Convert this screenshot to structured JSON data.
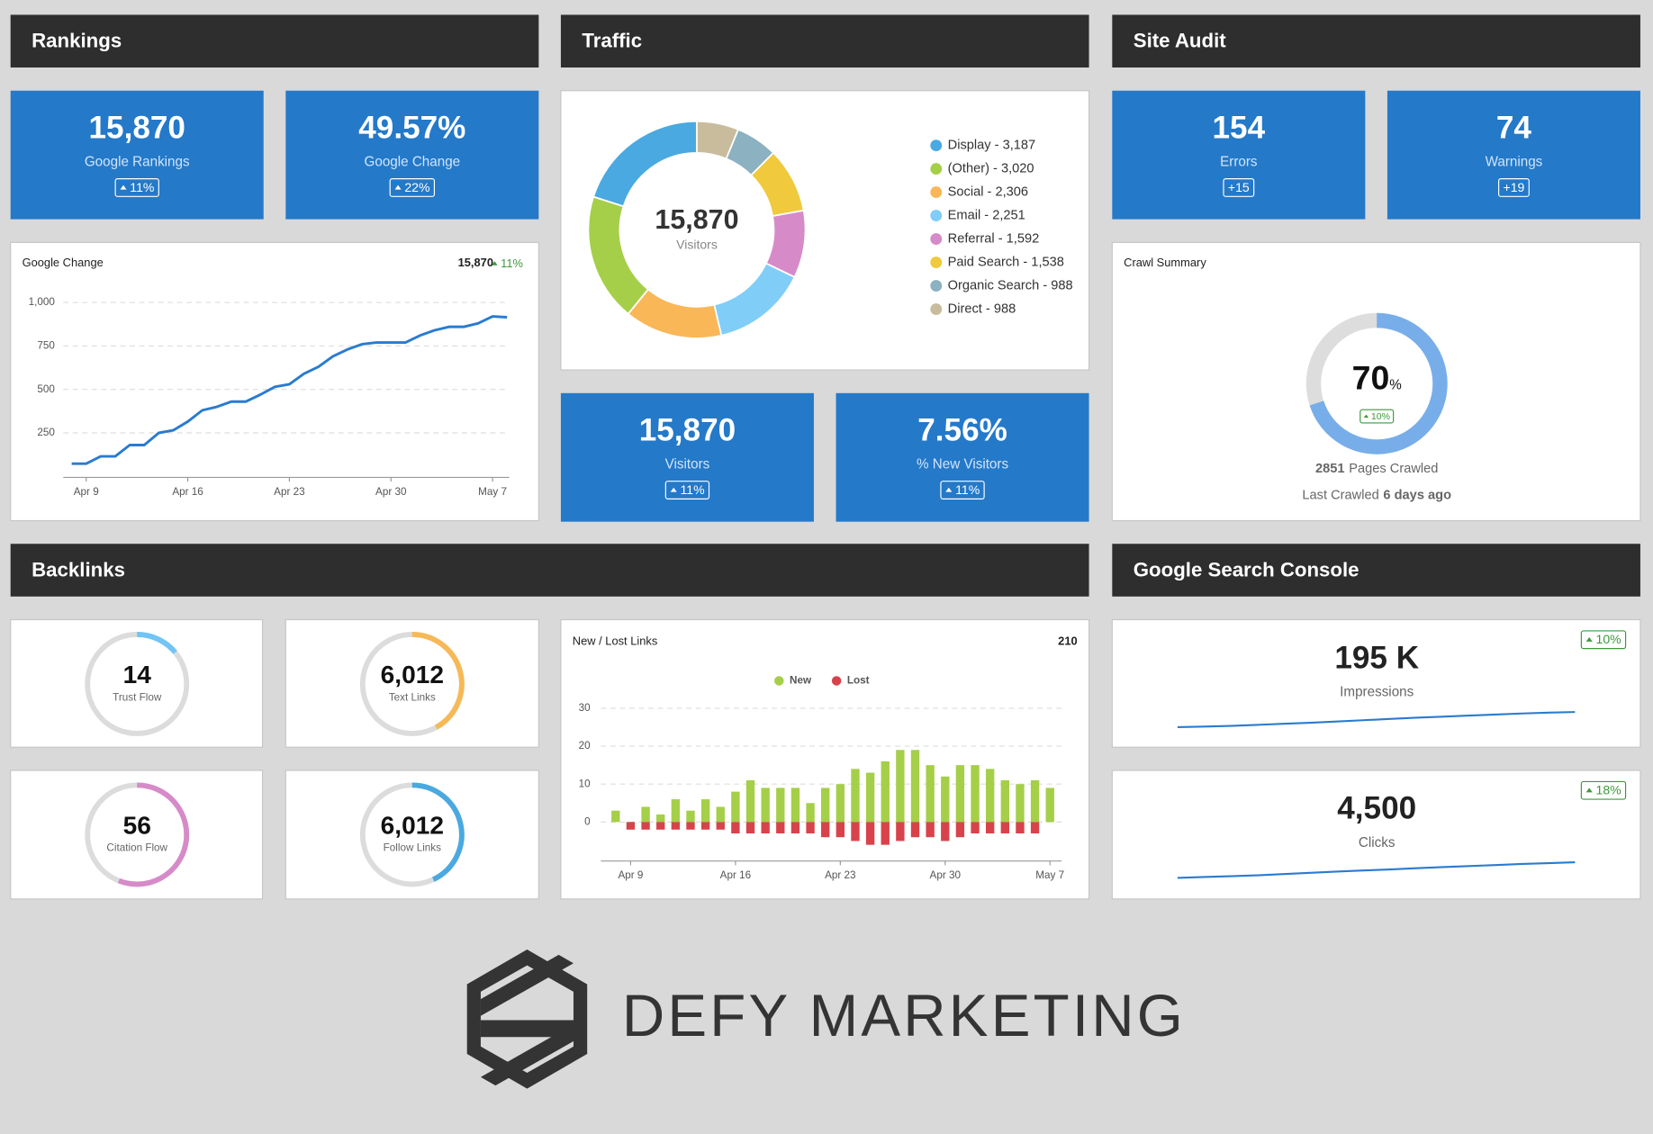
{
  "headers": [
    "Rankings",
    "Traffic",
    "Site Audit",
    "Backlinks",
    "Google Search Console"
  ],
  "tiles": [
    {
      "value": "15,870",
      "label": "Google Rankings",
      "change": "11%",
      "arrow": true
    },
    {
      "value": "49.57%",
      "label": "Google Change",
      "change": "22%",
      "arrow": true
    },
    {
      "value": "154",
      "label": "Errors",
      "change": "+15",
      "arrow": false
    },
    {
      "value": "74",
      "label": "Warnings",
      "change": "+19",
      "arrow": false
    },
    {
      "value": "15,870",
      "label": "Visitors",
      "change": "11%",
      "arrow": true
    },
    {
      "value": "7.56%",
      "label": "% New Visitors",
      "change": "11%",
      "arrow": true
    }
  ],
  "rankings_chart": {
    "type": "line",
    "title": "Google Change",
    "total": "15,870",
    "change": "11%",
    "color": "#2a7bcf",
    "categories": [
      null,
      "Apr 9",
      null,
      null,
      null,
      null,
      null,
      null,
      "Apr 16",
      null,
      null,
      null,
      null,
      null,
      null,
      "Apr 23",
      null,
      null,
      null,
      null,
      null,
      null,
      "Apr 30",
      null,
      null,
      null,
      null,
      null,
      null,
      "May 7",
      null
    ],
    "values": [
      73,
      73,
      115,
      115,
      180,
      180,
      250,
      265,
      315,
      380,
      400,
      430,
      430,
      470,
      515,
      530,
      590,
      630,
      690,
      730,
      760,
      770,
      770,
      770,
      810,
      840,
      860,
      860,
      880,
      920,
      915
    ],
    "ylim": [
      0,
      1000
    ],
    "yticks": [
      250,
      500,
      750,
      {
        "value": 1000,
        "label": "1,000"
      }
    ],
    "grid": true
  },
  "traffic_chart": {
    "type": "pie",
    "total": "15,870",
    "total_label": "Visitors",
    "labels": [
      "Display - 3,187",
      "(Other) - 3,020",
      "Social - 2,306",
      "Email - 2,251",
      "Referral - 1,592",
      "Paid Search - 1,538",
      "Organic Search - 988",
      "Direct - 988"
    ],
    "values": [
      3187,
      3020,
      2306,
      2251,
      1592,
      1538,
      988,
      988
    ],
    "colors": [
      "#4aa9e0",
      "#a5cf48",
      "#f9b757",
      "#80cdf8",
      "#d68bc8",
      "#f0c93d",
      "#8cb1c1",
      "#c8bc9d"
    ]
  },
  "crawl": {
    "title": "Crawl Summary",
    "value": 70,
    "unit": "%",
    "change": "10%",
    "color": "#77aeea",
    "pages": "2851",
    "pages_label": "Pages Crawled",
    "last_label": "Last Crawled",
    "last_value": "6 days ago"
  },
  "backlink_rings": [
    {
      "value": 14,
      "label": "Trust Flow",
      "percent": 14,
      "color": "#71c4f5"
    },
    {
      "value": "6,012",
      "label": "Text Links",
      "percent": 42,
      "color": "#f6b957"
    },
    {
      "value": 56,
      "label": "Citation Flow",
      "percent": 56,
      "color": "#d68bc8"
    },
    {
      "value": "6,012",
      "label": "Follow Links",
      "percent": 43,
      "color": "#4aa9e0"
    }
  ],
  "links_chart": {
    "type": "bar",
    "title": "New / Lost Links",
    "total": "210",
    "categories": [
      null,
      "Apr 9",
      null,
      null,
      null,
      null,
      null,
      null,
      "Apr 16",
      null,
      null,
      null,
      null,
      null,
      null,
      "Apr 23",
      null,
      null,
      null,
      null,
      null,
      null,
      "Apr 30",
      null,
      null,
      null,
      null,
      null,
      null,
      "May 7"
    ],
    "series": [
      {
        "name": "New",
        "color": "#a5cf48",
        "values": [
          3,
          0,
          4,
          2,
          6,
          3,
          6,
          4,
          8,
          11,
          9,
          9,
          9,
          5,
          9,
          10,
          14,
          13,
          16,
          19,
          19,
          15,
          12,
          15,
          15,
          14,
          11,
          10,
          11,
          9
        ]
      },
      {
        "name": "Lost",
        "color": "#d8434b",
        "values": [
          0,
          -2,
          -2,
          -2,
          -2,
          -2,
          -2,
          -2,
          -3,
          -3,
          -3,
          -3,
          -3,
          -3,
          -4,
          -4,
          -5,
          -6,
          -6,
          -5,
          -4,
          -4,
          -5,
          -4,
          -3,
          -3,
          -3,
          -3,
          -3,
          0
        ]
      }
    ],
    "ylim": [
      -10,
      30
    ],
    "yticks": [
      0,
      10,
      20,
      30
    ],
    "grid": true
  },
  "search_console": [
    {
      "value": "195 K",
      "label": "Impressions",
      "change": "10%",
      "color": "#2a7bcf",
      "trend": [
        10,
        13,
        16,
        21,
        26,
        31,
        37,
        43,
        49,
        55,
        60,
        65,
        70,
        75,
        79,
        82
      ],
      "trend_ylim": [
        0,
        100
      ]
    },
    {
      "value": "4,500",
      "label": "Clicks",
      "change": "18%",
      "color": "#2a7bcf",
      "trend": [
        10,
        14,
        18,
        22,
        28,
        34,
        40,
        45,
        50,
        56,
        61,
        66,
        71,
        76,
        80,
        84
      ],
      "trend_ylim": [
        0,
        100
      ]
    }
  ],
  "logo": "DEFY MARKETING"
}
